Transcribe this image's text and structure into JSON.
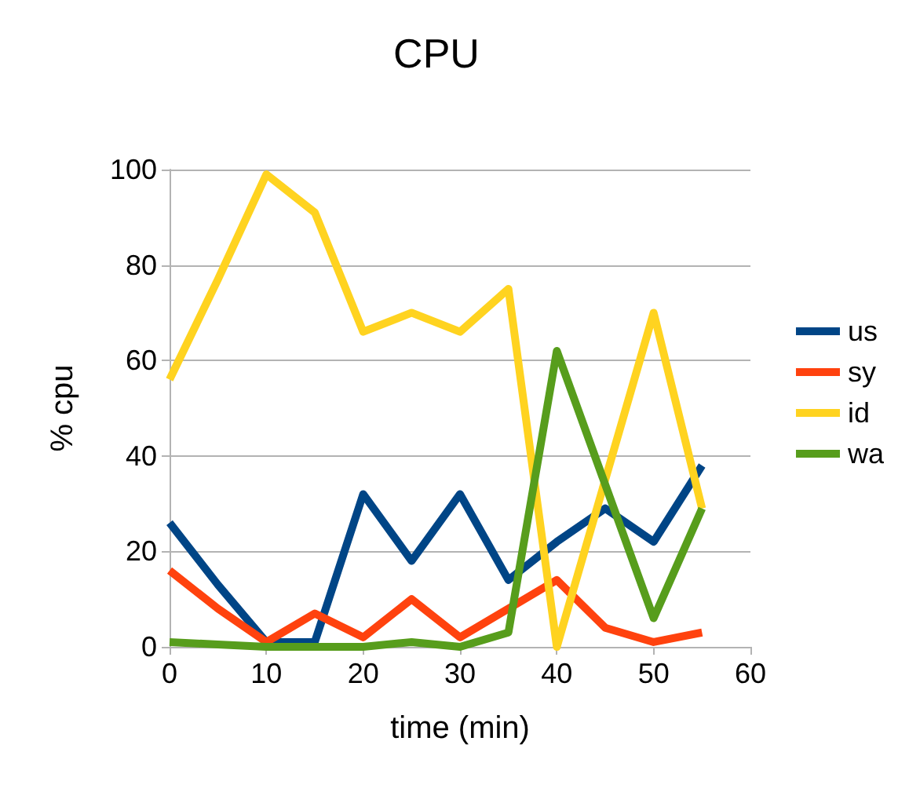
{
  "chart_data": {
    "type": "line",
    "title": "CPU",
    "xlabel": "time (min)",
    "ylabel": "% cpu",
    "x": [
      0,
      5,
      10,
      15,
      20,
      25,
      30,
      35,
      40,
      45,
      50,
      55
    ],
    "series": [
      {
        "name": "us",
        "color": "#004586",
        "values": [
          26,
          13,
          1,
          1,
          32,
          18,
          32,
          14,
          22,
          29,
          22,
          38
        ]
      },
      {
        "name": "sy",
        "color": "#ff420e",
        "values": [
          16,
          8,
          1,
          7,
          2,
          10,
          2,
          8,
          14,
          4,
          1,
          3
        ]
      },
      {
        "name": "id",
        "color": "#ffd320",
        "values": [
          56,
          77,
          99,
          91,
          66,
          70,
          66,
          75,
          0,
          35,
          70,
          29
        ]
      },
      {
        "name": "wa",
        "color": "#579d1c",
        "values": [
          1,
          0.5,
          0,
          0,
          0,
          1,
          0,
          3,
          62,
          34,
          6,
          29
        ]
      }
    ],
    "xlim": [
      0,
      60
    ],
    "xticks": [
      0,
      10,
      20,
      30,
      40,
      50,
      60
    ],
    "ylim": [
      0,
      100
    ],
    "yticks": [
      0,
      20,
      40,
      60,
      80,
      100
    ],
    "grid": "y",
    "legend": "right",
    "marker": "none",
    "line_style": "solid"
  }
}
